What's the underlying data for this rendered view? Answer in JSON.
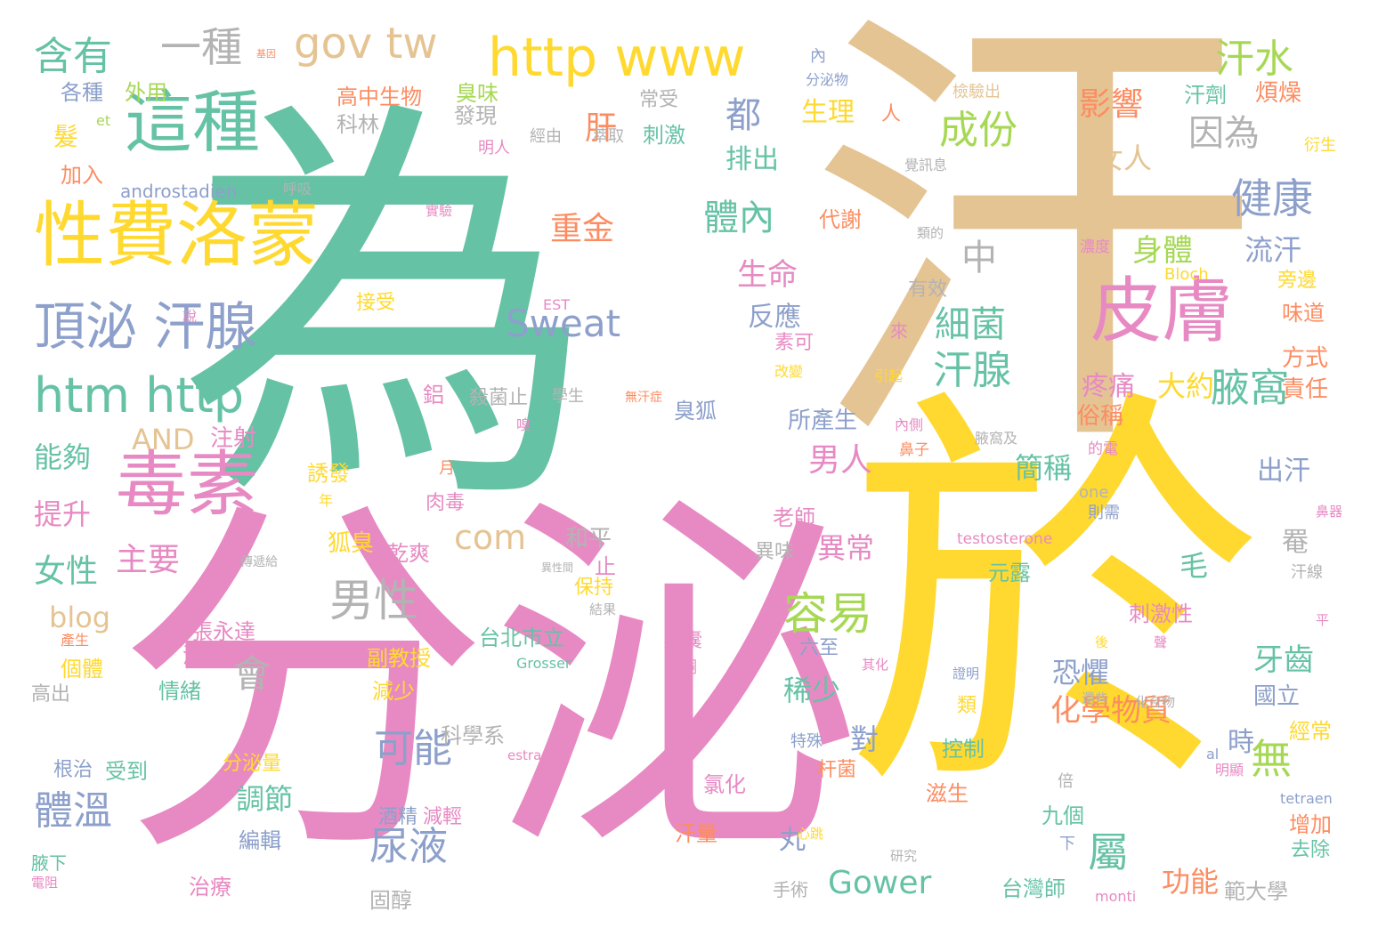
{
  "palette": {
    "teal": "#66c2a5",
    "pink": "#e78ac3",
    "yellow": "#ffd92f",
    "tan": "#e5c494",
    "blue": "#8da0cb",
    "green": "#a6d854",
    "orange": "#fc8d62",
    "gray": "#b3b3b3"
  },
  "words": [
    {
      "text": "為",
      "color": "teal"
    },
    {
      "text": "汗",
      "color": "tan"
    },
    {
      "text": "分泌",
      "color": "pink"
    },
    {
      "text": "於",
      "color": "yellow"
    },
    {
      "text": "性費洛蒙",
      "color": "yellow"
    },
    {
      "text": "毒素",
      "color": "pink"
    },
    {
      "text": "這種",
      "color": "teal"
    },
    {
      "text": "皮膚",
      "color": "pink"
    },
    {
      "text": "頂泌 汗腺",
      "color": "blue"
    },
    {
      "text": "http www",
      "color": "yellow"
    },
    {
      "text": "htm http",
      "color": "teal"
    },
    {
      "text": "gov tw",
      "color": "tan"
    },
    {
      "text": "一種",
      "color": "gray"
    },
    {
      "text": "含有",
      "color": "teal"
    },
    {
      "text": "汗水",
      "color": "green"
    },
    {
      "text": "成份",
      "color": "green"
    },
    {
      "text": "因為",
      "color": "gray"
    },
    {
      "text": "健康",
      "color": "blue"
    },
    {
      "text": "影響",
      "color": "orange"
    },
    {
      "text": "汗腺",
      "color": "teal"
    },
    {
      "text": "腋窩",
      "color": "teal"
    },
    {
      "text": "Sweat",
      "color": "blue"
    },
    {
      "text": "男性",
      "color": "gray"
    },
    {
      "text": "容易",
      "color": "green"
    },
    {
      "text": "可能",
      "color": "blue"
    },
    {
      "text": "Gower",
      "color": "teal"
    },
    {
      "text": "體溫",
      "color": "blue"
    },
    {
      "text": "尿液",
      "color": "blue"
    },
    {
      "text": "屬",
      "color": "teal"
    },
    {
      "text": "無",
      "color": "green"
    },
    {
      "text": "com",
      "color": "tan"
    },
    {
      "text": "會",
      "color": "gray"
    },
    {
      "text": "都",
      "color": "blue"
    },
    {
      "text": "肝",
      "color": "orange"
    },
    {
      "text": "中",
      "color": "gray"
    },
    {
      "text": "體內",
      "color": "teal"
    },
    {
      "text": "細菌",
      "color": "teal"
    },
    {
      "text": "身體",
      "color": "green"
    },
    {
      "text": "男人",
      "color": "pink"
    },
    {
      "text": "主要",
      "color": "pink"
    },
    {
      "text": "女性",
      "color": "teal"
    },
    {
      "text": "提升",
      "color": "pink"
    },
    {
      "text": "能夠",
      "color": "teal"
    },
    {
      "text": "化學物質",
      "color": "orange"
    },
    {
      "text": "牙齒",
      "color": "teal"
    },
    {
      "text": "生命",
      "color": "pink"
    },
    {
      "text": "反應",
      "color": "blue"
    },
    {
      "text": "排出",
      "color": "teal"
    },
    {
      "text": "生理",
      "color": "yellow"
    },
    {
      "text": "重金",
      "color": "orange"
    },
    {
      "text": "流汗",
      "color": "blue"
    },
    {
      "text": "女人",
      "color": "tan"
    },
    {
      "text": "大約",
      "color": "yellow"
    },
    {
      "text": "疼痛",
      "color": "pink"
    },
    {
      "text": "簡稱",
      "color": "teal"
    },
    {
      "text": "出汗",
      "color": "blue"
    },
    {
      "text": "異常",
      "color": "pink"
    },
    {
      "text": "調節",
      "color": "teal"
    },
    {
      "text": "稀少",
      "color": "teal"
    },
    {
      "text": "對",
      "color": "blue"
    },
    {
      "text": "功能",
      "color": "orange"
    },
    {
      "text": "恐懼",
      "color": "blue"
    },
    {
      "text": "時",
      "color": "blue"
    },
    {
      "text": "丸",
      "color": "blue"
    },
    {
      "text": "毛",
      "color": "teal"
    },
    {
      "text": "罨",
      "color": "gray"
    },
    {
      "text": "blog",
      "color": "tan"
    },
    {
      "text": "AND",
      "color": "tan"
    },
    {
      "text": "注射",
      "color": "pink"
    },
    {
      "text": "髮",
      "color": "yellow"
    },
    {
      "text": "加入",
      "color": "orange"
    },
    {
      "text": "外用",
      "color": "green"
    },
    {
      "text": "各種",
      "color": "blue"
    },
    {
      "text": "et",
      "color": "green"
    },
    {
      "text": "高中生物",
      "color": "orange"
    },
    {
      "text": "臭味",
      "color": "green"
    },
    {
      "text": "發現",
      "color": "gray"
    },
    {
      "text": "科林",
      "color": "gray"
    },
    {
      "text": "明人",
      "color": "pink"
    },
    {
      "text": "經由",
      "color": "gray"
    },
    {
      "text": "萃取",
      "color": "gray"
    },
    {
      "text": "常受",
      "color": "gray"
    },
    {
      "text": "刺激",
      "color": "teal"
    },
    {
      "text": "代謝",
      "color": "orange"
    },
    {
      "text": "人",
      "color": "orange"
    },
    {
      "text": "分泌物",
      "color": "blue"
    },
    {
      "text": "內",
      "color": "blue"
    },
    {
      "text": "檢驗出",
      "color": "tan"
    },
    {
      "text": "汗劑",
      "color": "teal"
    },
    {
      "text": "煩燥",
      "color": "orange"
    },
    {
      "text": "衍生",
      "color": "yellow"
    },
    {
      "text": "androstadien",
      "color": "blue"
    },
    {
      "text": "呼吸",
      "color": "gray"
    },
    {
      "text": "實驗",
      "color": "pink"
    },
    {
      "text": "覺訊息",
      "color": "gray"
    },
    {
      "text": "類的",
      "color": "gray"
    },
    {
      "text": "濃度",
      "color": "pink"
    },
    {
      "text": "Bloch",
      "color": "yellow"
    },
    {
      "text": "旁邊",
      "color": "yellow"
    },
    {
      "text": "味道",
      "color": "orange"
    },
    {
      "text": "方式",
      "color": "orange"
    },
    {
      "text": "責任",
      "color": "orange"
    },
    {
      "text": "俗稱",
      "color": "orange"
    },
    {
      "text": "有效",
      "color": "gray"
    },
    {
      "text": "來",
      "color": "pink"
    },
    {
      "text": "引起",
      "color": "yellow"
    },
    {
      "text": "素可",
      "color": "pink"
    },
    {
      "text": "改變",
      "color": "yellow"
    },
    {
      "text": "接受",
      "color": "yellow"
    },
    {
      "text": "EST",
      "color": "pink"
    },
    {
      "text": "說",
      "color": "pink"
    },
    {
      "text": "鋁",
      "color": "pink"
    },
    {
      "text": "殺菌止",
      "color": "gray"
    },
    {
      "text": "學生",
      "color": "gray"
    },
    {
      "text": "無汗症",
      "color": "orange"
    },
    {
      "text": "臭狐",
      "color": "blue"
    },
    {
      "text": "所產生",
      "color": "blue"
    },
    {
      "text": "內側",
      "color": "pink"
    },
    {
      "text": "腋窩及",
      "color": "gray"
    },
    {
      "text": "的電",
      "color": "pink"
    },
    {
      "text": "鼻子",
      "color": "orange"
    },
    {
      "text": "one",
      "color": "gray"
    },
    {
      "text": "嗅",
      "color": "pink"
    },
    {
      "text": "誘發",
      "color": "yellow"
    },
    {
      "text": "月",
      "color": "orange"
    },
    {
      "text": "肉毒",
      "color": "pink"
    },
    {
      "text": "年",
      "color": "yellow"
    },
    {
      "text": "狐臭",
      "color": "yellow"
    },
    {
      "text": "乾爽",
      "color": "pink"
    },
    {
      "text": "和平",
      "color": "gray"
    },
    {
      "text": "止",
      "color": "pink"
    },
    {
      "text": "老師",
      "color": "pink"
    },
    {
      "text": "異味",
      "color": "gray"
    },
    {
      "text": "testosterone",
      "color": "pink"
    },
    {
      "text": "則需",
      "color": "blue"
    },
    {
      "text": "鼻器",
      "color": "pink"
    },
    {
      "text": "傳遞給",
      "color": "gray"
    },
    {
      "text": "異性間",
      "color": "gray"
    },
    {
      "text": "保持",
      "color": "yellow"
    },
    {
      "text": "結果",
      "color": "gray"
    },
    {
      "text": "元露",
      "color": "teal"
    },
    {
      "text": "汗線",
      "color": "gray"
    },
    {
      "text": "平",
      "color": "pink"
    },
    {
      "text": "刺激性",
      "color": "pink"
    },
    {
      "text": "張永達",
      "color": "pink"
    },
    {
      "text": "清潔",
      "color": "pink"
    },
    {
      "text": "台北市立",
      "color": "teal"
    },
    {
      "text": "副教授",
      "color": "yellow"
    },
    {
      "text": "毛囊",
      "color": "pink"
    },
    {
      "text": "酮",
      "color": "pink"
    },
    {
      "text": "Grosser",
      "color": "teal"
    },
    {
      "text": "六至",
      "color": "blue"
    },
    {
      "text": "其化",
      "color": "pink"
    },
    {
      "text": "後",
      "color": "yellow"
    },
    {
      "text": "聲",
      "color": "pink"
    },
    {
      "text": "產生",
      "color": "orange"
    },
    {
      "text": "個體",
      "color": "yellow"
    },
    {
      "text": "高出",
      "color": "gray"
    },
    {
      "text": "情緒",
      "color": "teal"
    },
    {
      "text": "減少",
      "color": "yellow"
    },
    {
      "text": "證明",
      "color": "blue"
    },
    {
      "text": "還些",
      "color": "gray"
    },
    {
      "text": "化合物",
      "color": "gray"
    },
    {
      "text": "國立",
      "color": "blue"
    },
    {
      "text": "經常",
      "color": "yellow"
    },
    {
      "text": "類",
      "color": "yellow"
    },
    {
      "text": "科學系",
      "color": "gray"
    },
    {
      "text": "特殊",
      "color": "blue"
    },
    {
      "text": "根治",
      "color": "blue"
    },
    {
      "text": "受到",
      "color": "teal"
    },
    {
      "text": "分泌量",
      "color": "yellow"
    },
    {
      "text": "estra",
      "color": "pink"
    },
    {
      "text": "控制",
      "color": "teal"
    },
    {
      "text": "al",
      "color": "blue"
    },
    {
      "text": "明顯",
      "color": "pink"
    },
    {
      "text": "杆菌",
      "color": "orange"
    },
    {
      "text": "氯化",
      "color": "pink"
    },
    {
      "text": "倍",
      "color": "gray"
    },
    {
      "text": "tetraen",
      "color": "blue"
    },
    {
      "text": "滋生",
      "color": "orange"
    },
    {
      "text": "九個",
      "color": "teal"
    },
    {
      "text": "增加",
      "color": "orange"
    },
    {
      "text": "下",
      "color": "blue"
    },
    {
      "text": "去除",
      "color": "teal"
    },
    {
      "text": "心跳",
      "color": "yellow"
    },
    {
      "text": "酒精",
      "color": "blue"
    },
    {
      "text": "減輕",
      "color": "pink"
    },
    {
      "text": "汗量",
      "color": "orange"
    },
    {
      "text": "研究",
      "color": "gray"
    },
    {
      "text": "腋下",
      "color": "teal"
    },
    {
      "text": "編輯",
      "color": "blue"
    },
    {
      "text": "台灣師",
      "color": "teal"
    },
    {
      "text": "範大學",
      "color": "gray"
    },
    {
      "text": "電阻",
      "color": "pink"
    },
    {
      "text": "治療",
      "color": "pink"
    },
    {
      "text": "固醇",
      "color": "gray"
    },
    {
      "text": "手術",
      "color": "gray"
    },
    {
      "text": "monti",
      "color": "pink"
    },
    {
      "text": "基因",
      "color": "orange"
    }
  ]
}
